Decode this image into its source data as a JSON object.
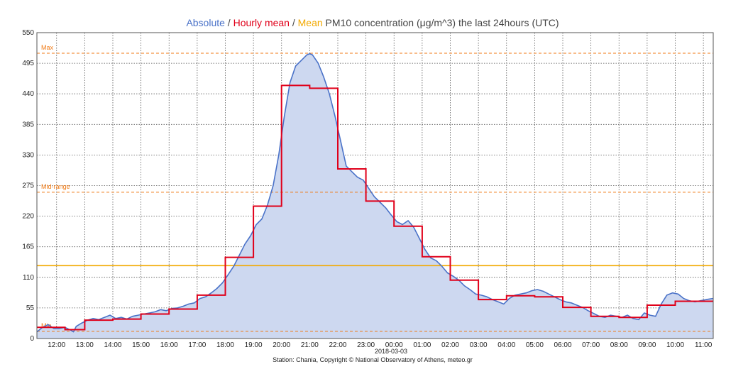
{
  "chart_data": {
    "type": "line",
    "title_parts": [
      {
        "text": "Absolute",
        "color": "#4a72c8"
      },
      {
        "text": " / ",
        "color": "#444444"
      },
      {
        "text": "Hourly mean",
        "color": "#e0001a"
      },
      {
        "text": " / ",
        "color": "#444444"
      },
      {
        "text": "Mean",
        "color": "#f2a900"
      },
      {
        "text": " PM10 concentration (μg/m^3) the last 24hours (UTC)",
        "color": "#444444"
      }
    ],
    "date_label": "2018-03-03",
    "footer": "Station: Chania, Copyright © National Observatory of Athens, meteo.gr",
    "ylim": [
      0,
      550
    ],
    "y_ticks": [
      0,
      55,
      110,
      165,
      220,
      275,
      330,
      385,
      440,
      495,
      550
    ],
    "xlim": [
      11.3,
      35.35
    ],
    "x_ticks": [
      {
        "x": 12,
        "label": "12:00"
      },
      {
        "x": 13,
        "label": "13:00"
      },
      {
        "x": 14,
        "label": "14:00"
      },
      {
        "x": 15,
        "label": "15:00"
      },
      {
        "x": 16,
        "label": "16:00"
      },
      {
        "x": 17,
        "label": "17:00"
      },
      {
        "x": 18,
        "label": "18:00"
      },
      {
        "x": 19,
        "label": "19:00"
      },
      {
        "x": 20,
        "label": "20:00"
      },
      {
        "x": 21,
        "label": "21:00"
      },
      {
        "x": 22,
        "label": "22:00"
      },
      {
        "x": 23,
        "label": "23:00"
      },
      {
        "x": 24,
        "label": "00:00"
      },
      {
        "x": 25,
        "label": "01:00"
      },
      {
        "x": 26,
        "label": "02:00"
      },
      {
        "x": 27,
        "label": "03:00"
      },
      {
        "x": 28,
        "label": "04:00"
      },
      {
        "x": 29,
        "label": "05:00"
      },
      {
        "x": 30,
        "label": "06:00"
      },
      {
        "x": 31,
        "label": "07:00"
      },
      {
        "x": 32,
        "label": "08:00"
      },
      {
        "x": 33,
        "label": "09:00"
      },
      {
        "x": 34,
        "label": "10:00"
      },
      {
        "x": 35,
        "label": "11:00"
      }
    ],
    "grid": true,
    "colors": {
      "absolute_line": "#4a72c8",
      "absolute_fill": "#cdd8f0",
      "hourly": "#e0001a",
      "mean": "#f2a900",
      "reference": "#f07a14",
      "grid": "#555555"
    },
    "reference_lines": [
      {
        "label": "Max",
        "value": 513
      },
      {
        "label": "Mid-range",
        "value": 263
      },
      {
        "label": "Min",
        "value": 13
      }
    ],
    "mean_value": 131,
    "series": [
      {
        "name": "Absolute",
        "x": [
          11.3,
          11.5,
          11.7,
          11.9,
          12.1,
          12.3,
          12.5,
          12.6,
          12.7,
          12.9,
          13.1,
          13.3,
          13.5,
          13.7,
          13.9,
          14.1,
          14.3,
          14.5,
          14.7,
          14.9,
          15.1,
          15.3,
          15.5,
          15.7,
          15.9,
          16.1,
          16.3,
          16.5,
          16.7,
          16.9,
          17.1,
          17.3,
          17.5,
          17.7,
          17.9,
          18.1,
          18.3,
          18.5,
          18.7,
          18.9,
          19.1,
          19.3,
          19.5,
          19.7,
          19.9,
          20.1,
          20.3,
          20.5,
          20.7,
          20.9,
          21.0,
          21.1,
          21.3,
          21.5,
          21.7,
          21.9,
          22.1,
          22.3,
          22.5,
          22.7,
          22.9,
          23.1,
          23.3,
          23.5,
          23.7,
          23.9,
          24.1,
          24.3,
          24.5,
          24.7,
          24.9,
          25.1,
          25.3,
          25.5,
          25.7,
          25.9,
          26.1,
          26.3,
          26.5,
          26.7,
          26.9,
          27.1,
          27.3,
          27.5,
          27.7,
          27.9,
          28.1,
          28.3,
          28.5,
          28.7,
          28.9,
          29.1,
          29.3,
          29.5,
          29.7,
          29.9,
          30.1,
          30.3,
          30.5,
          30.7,
          30.9,
          31.1,
          31.3,
          31.5,
          31.7,
          31.9,
          32.1,
          32.3,
          32.5,
          32.7,
          32.9,
          33.1,
          33.3,
          33.5,
          33.7,
          33.9,
          34.1,
          34.3,
          34.5,
          34.7,
          34.9,
          35.1,
          35.35
        ],
        "y": [
          12,
          20,
          25,
          18,
          18,
          20,
          15,
          12,
          22,
          28,
          33,
          36,
          34,
          38,
          42,
          36,
          38,
          35,
          40,
          42,
          44,
          46,
          48,
          52,
          50,
          54,
          55,
          58,
          62,
          64,
          72,
          75,
          82,
          90,
          100,
          115,
          130,
          150,
          170,
          185,
          205,
          215,
          240,
          275,
          330,
          400,
          460,
          490,
          500,
          510,
          512,
          510,
          495,
          470,
          440,
          400,
          355,
          310,
          300,
          290,
          285,
          270,
          255,
          245,
          235,
          222,
          210,
          205,
          212,
          200,
          180,
          160,
          145,
          140,
          130,
          118,
          112,
          105,
          95,
          88,
          80,
          78,
          75,
          70,
          66,
          62,
          72,
          78,
          80,
          82,
          86,
          88,
          85,
          80,
          75,
          70,
          66,
          64,
          60,
          56,
          50,
          45,
          40,
          38,
          42,
          40,
          38,
          42,
          36,
          34,
          46,
          42,
          40,
          62,
          78,
          82,
          80,
          72,
          68,
          66,
          68,
          70,
          72
        ]
      },
      {
        "name": "Hourly mean",
        "hour_starts": [
          11.3,
          12.3,
          13,
          14,
          15,
          16,
          17,
          18,
          19,
          20,
          21,
          22,
          23,
          24,
          25,
          26,
          27,
          28,
          29,
          30,
          31,
          32,
          33,
          34,
          35.35
        ],
        "values": [
          20,
          16,
          33,
          35,
          44,
          53,
          78,
          146,
          238,
          455,
          450,
          305,
          247,
          202,
          147,
          105,
          70,
          77,
          75,
          56,
          40,
          38,
          60,
          67,
          67
        ]
      }
    ]
  }
}
